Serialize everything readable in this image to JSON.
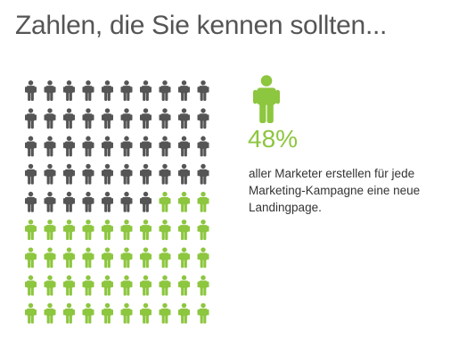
{
  "title": "Zahlen, die Sie kennen sollten...",
  "stat": {
    "value_label": "48%",
    "caption": "aller Marketer erstellen für jede Marketing-Kampagne eine neue Landingpage."
  },
  "colors": {
    "highlight": "#8dc63f",
    "base": "#555555",
    "title": "#555555",
    "caption": "#333333"
  },
  "icon": "person-icon",
  "chart_data": {
    "type": "pictograph",
    "total_icons": 90,
    "rows": 9,
    "columns": 10,
    "highlighted_icons": 43,
    "highlighted_fraction": 0.48,
    "fill_order": "from bottom-right"
  }
}
